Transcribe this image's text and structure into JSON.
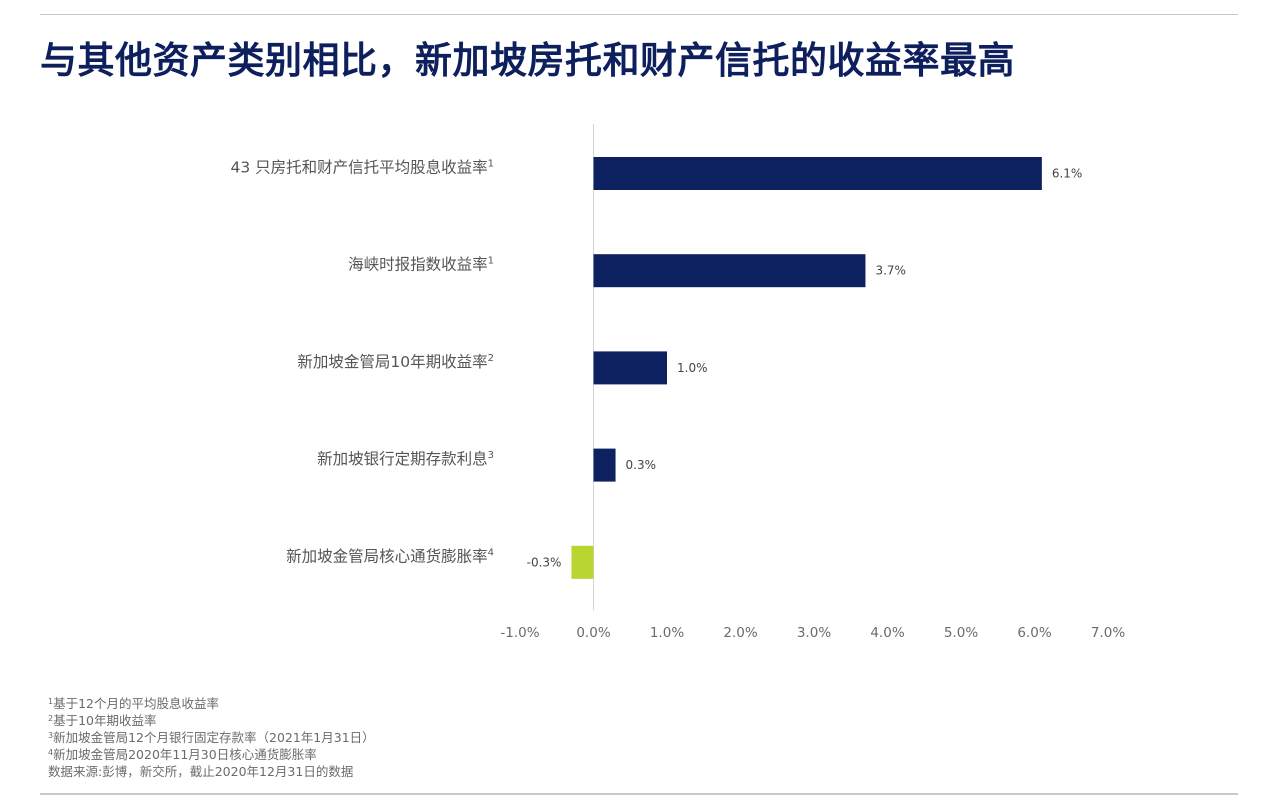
{
  "title": "与其他资产类别相比，新加坡房托和财产信托的收益率最高",
  "colors": {
    "title": "#0d1f5c",
    "bar_positive": "#0d2160",
    "bar_negative": "#b9d532",
    "axis_text": "#6b6b6b",
    "label_text": "#555555"
  },
  "chart_data": {
    "type": "bar",
    "orientation": "horizontal",
    "categories": [
      {
        "label": "43 只房托和财产信托平均股息收益率",
        "note": "1"
      },
      {
        "label": "海峡时报指数收益率",
        "note": "1"
      },
      {
        "label": "新加坡金管局10年期收益率",
        "note": "2"
      },
      {
        "label": "新加坡银行定期存款利息",
        "note": "3"
      },
      {
        "label": "新加坡金管局核心通货膨胀率",
        "note": "4"
      }
    ],
    "values": [
      6.1,
      3.7,
      1.0,
      0.3,
      -0.3
    ],
    "value_labels": [
      "6.1%",
      "3.7%",
      "1.0%",
      "0.3%",
      "-0.3%"
    ],
    "xlim": [
      -1.0,
      7.0
    ],
    "xticks": [
      -1,
      0,
      1,
      2,
      3,
      4,
      5,
      6,
      7
    ],
    "xtick_labels": [
      "-1.0%",
      "0.0%",
      "1.0%",
      "2.0%",
      "3.0%",
      "4.0%",
      "5.0%",
      "6.0%",
      "7.0%"
    ],
    "grid": false,
    "legend": "none"
  },
  "footnotes": [
    {
      "mark": "1",
      "text": "基于12个月的平均股息收益率"
    },
    {
      "mark": "2",
      "text": "基于10年期收益率"
    },
    {
      "mark": "3",
      "text": "新加坡金管局12个月银行固定存款率（2021年1月31日）"
    },
    {
      "mark": "4",
      "text": "新加坡金管局2020年11月30日核心通货膨胀率"
    }
  ],
  "source": "数据来源:彭博，新交所，截止2020年12月31日的数据"
}
